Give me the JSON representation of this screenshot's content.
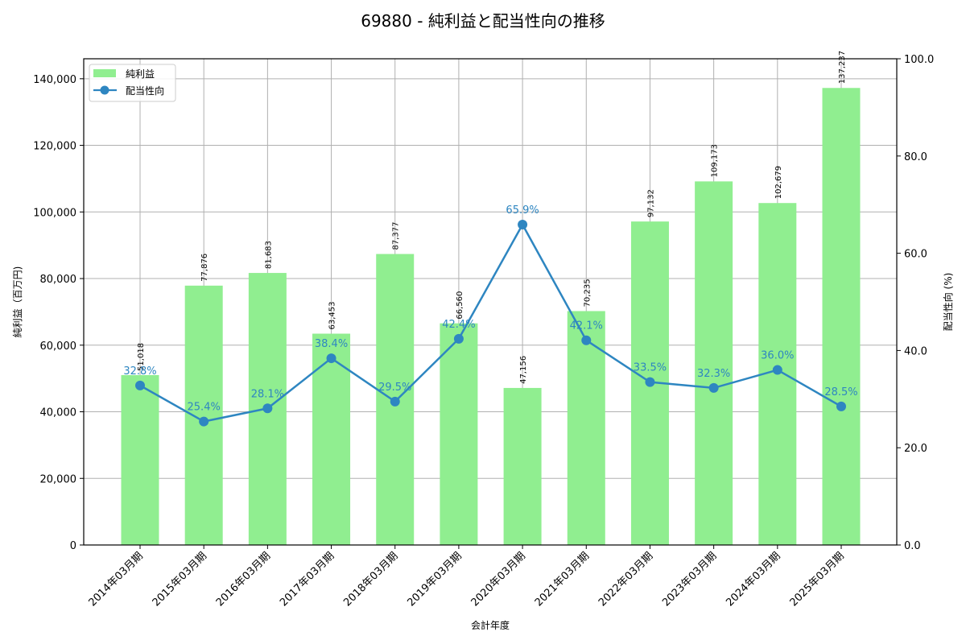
{
  "chart_data": {
    "type": "bar+line",
    "title": "69880 - 純利益と配当性向の推移",
    "xlabel": "会計年度",
    "ylabel": "純利益（百万円)",
    "ylabel_right": "配当性向 (%)",
    "categories": [
      "2014年03月期",
      "2015年03月期",
      "2016年03月期",
      "2017年03月期",
      "2018年03月期",
      "2019年03月期",
      "2020年03月期",
      "2021年03月期",
      "2022年03月期",
      "2023年03月期",
      "2024年03月期",
      "2025年03月期"
    ],
    "series": [
      {
        "name": "純利益",
        "type": "bar",
        "axis": "left",
        "color": "#90ee90",
        "values": [
          51018,
          77876,
          81683,
          63453,
          87377,
          66560,
          47156,
          70235,
          97132,
          109173,
          102679,
          137237
        ],
        "labels": [
          "51,018",
          "77,876",
          "81,683",
          "63,453",
          "87,377",
          "66,560",
          "47,156",
          "70,235",
          "97,132",
          "109,173",
          "102,679",
          "137,237"
        ]
      },
      {
        "name": "配当性向",
        "type": "line",
        "axis": "right",
        "color": "#2e86c1",
        "values": [
          32.8,
          25.4,
          28.1,
          38.4,
          29.5,
          42.4,
          65.9,
          42.1,
          33.5,
          32.3,
          36.0,
          28.5
        ],
        "labels": [
          "32.8%",
          "25.4%",
          "28.1%",
          "38.4%",
          "29.5%",
          "42.4%",
          "65.9%",
          "42.1%",
          "33.5%",
          "32.3%",
          "36.0%",
          "28.5%"
        ]
      }
    ],
    "ylim": [
      0,
      146000
    ],
    "ylim_right": [
      0,
      100
    ],
    "yticks": [
      0,
      20000,
      40000,
      60000,
      80000,
      100000,
      120000,
      140000
    ],
    "ytick_labels": [
      "0",
      "20,000",
      "40,000",
      "60,000",
      "80,000",
      "100,000",
      "120,000",
      "140,000"
    ],
    "yticks_right": [
      0,
      20,
      40,
      60,
      80,
      100
    ],
    "ytick_labels_right": [
      "0.0",
      "20.0",
      "40.0",
      "60.0",
      "80.0",
      "100.0"
    ],
    "grid": true,
    "legend_position": "upper left"
  }
}
